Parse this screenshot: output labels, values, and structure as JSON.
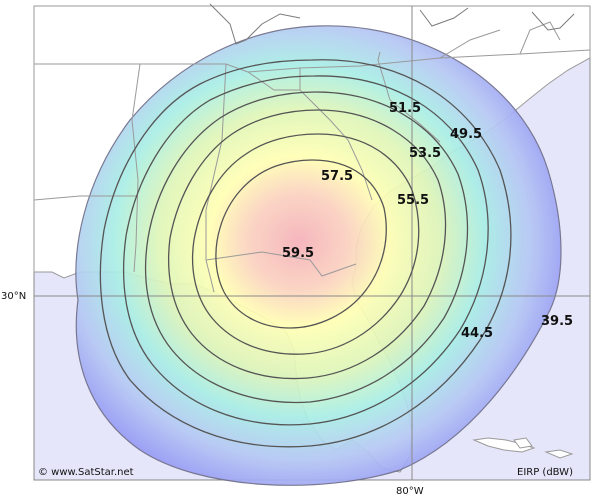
{
  "map": {
    "axes": {
      "lat_label": "30°N",
      "lon_label": "80°W"
    },
    "credit": "© www.SatStar.net",
    "legend_unit": "EIRP (dBW)",
    "contour_labels": [
      {
        "id": "c39",
        "text": "39.5"
      },
      {
        "id": "c44",
        "text": "44.5"
      },
      {
        "id": "c49",
        "text": "49.5"
      },
      {
        "id": "c51",
        "text": "51.5"
      },
      {
        "id": "c53",
        "text": "53.5"
      },
      {
        "id": "c55",
        "text": "55.5"
      },
      {
        "id": "c57",
        "text": "57.5"
      },
      {
        "id": "c59",
        "text": "59.5"
      }
    ],
    "colors": {
      "land": "#ffffff",
      "water": "#e6e6fa",
      "beam_outer": "#8f8ff5",
      "beam_mid": "#a8f0e8",
      "beam_inner": "#ffffb0",
      "beam_core": "#f5b8b8",
      "contour": "#555555"
    }
  }
}
